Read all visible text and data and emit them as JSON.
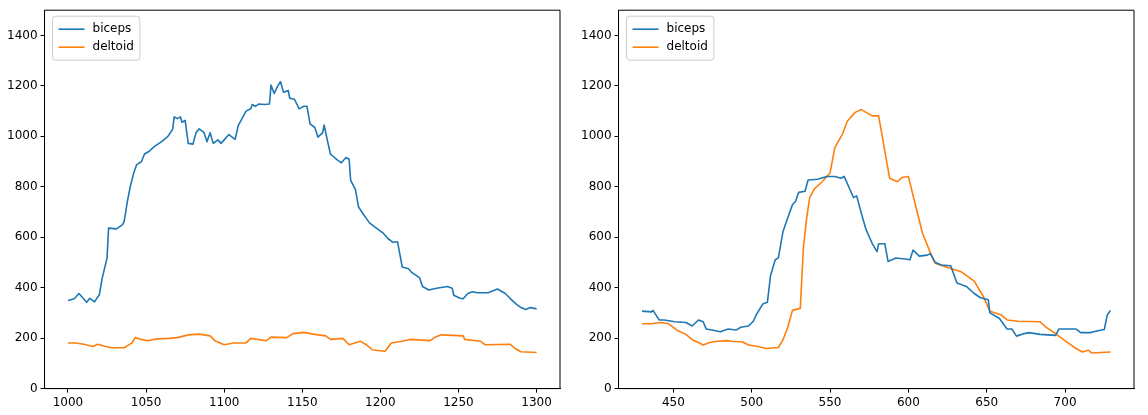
{
  "chart_data": [
    {
      "type": "line",
      "xlim": [
        985,
        1315
      ],
      "xticks": [
        1000,
        1050,
        1100,
        1150,
        1200,
        1250,
        1300
      ],
      "ylim": [
        0,
        1500
      ],
      "yticks": [
        0,
        200,
        400,
        600,
        800,
        1000,
        1200,
        1400
      ],
      "legend": "top left",
      "grid": false,
      "series": [
        {
          "name": "biceps",
          "color": "#1f77b4",
          "x": [
            1000,
            1004,
            1007,
            1009,
            1012,
            1014,
            1017,
            1019,
            1020,
            1022,
            1025,
            1026,
            1031,
            1035,
            1036,
            1038,
            1040,
            1042,
            1044,
            1047,
            1049,
            1052,
            1055,
            1060,
            1064,
            1067,
            1068,
            1070,
            1072,
            1073,
            1075,
            1077,
            1080,
            1082,
            1084,
            1087,
            1089,
            1091,
            1093,
            1096,
            1098,
            1100,
            1103,
            1106,
            1107,
            1109,
            1114,
            1117,
            1118,
            1120,
            1122,
            1126,
            1129,
            1130,
            1132,
            1134,
            1136,
            1138,
            1141,
            1142,
            1145,
            1148,
            1151,
            1153,
            1155,
            1158,
            1160,
            1163,
            1164,
            1166,
            1168,
            1172,
            1175,
            1178,
            1180,
            1181,
            1184,
            1186,
            1189,
            1193,
            1197,
            1202,
            1205,
            1208,
            1211,
            1214,
            1218,
            1220,
            1225,
            1227,
            1231,
            1236,
            1243,
            1246,
            1247,
            1251,
            1253,
            1256,
            1259,
            1262,
            1269,
            1275,
            1280,
            1283,
            1287,
            1290,
            1293,
            1296,
            1300
          ],
          "values": [
            349,
            356,
            377,
            363,
            342,
            358,
            344,
            363,
            370,
            440,
            517,
            636,
            633,
            650,
            664,
            741,
            804,
            853,
            888,
            899,
            930,
            941,
            958,
            979,
            1000,
            1028,
            1077,
            1070,
            1077,
            1056,
            1063,
            972,
            969,
            1014,
            1030,
            1016,
            979,
            1014,
            972,
            986,
            972,
            986,
            1007,
            993,
            988,
            1042,
            1100,
            1109,
            1126,
            1119,
            1128,
            1126,
            1128,
            1203,
            1170,
            1196,
            1217,
            1175,
            1182,
            1151,
            1147,
            1109,
            1119,
            1119,
            1049,
            1035,
            997,
            1014,
            1045,
            986,
            930,
            909,
            895,
            916,
            909,
            825,
            790,
            720,
            692,
            657,
            638,
            615,
            594,
            580,
            582,
            482,
            475,
            461,
            440,
            405,
            391,
            398,
            405,
            398,
            370,
            358,
            356,
            377,
            384,
            380,
            380,
            395,
            377,
            358,
            335,
            321,
            314,
            321,
            316
          ]
        },
        {
          "name": "deltoid",
          "color": "#ff7f0e",
          "x": [
            1000,
            1005,
            1010,
            1016,
            1019,
            1024,
            1028,
            1036,
            1041,
            1043,
            1047,
            1051,
            1057,
            1065,
            1070,
            1077,
            1084,
            1091,
            1094,
            1100,
            1106,
            1114,
            1117,
            1127,
            1130,
            1140,
            1144,
            1151,
            1157,
            1165,
            1168,
            1176,
            1180,
            1187,
            1191,
            1195,
            1203,
            1207,
            1214,
            1219,
            1232,
            1235,
            1239,
            1253,
            1254,
            1264,
            1267,
            1283,
            1286,
            1290,
            1300
          ],
          "values": [
            181,
            181,
            176,
            167,
            176,
            167,
            162,
            162,
            181,
            202,
            195,
            190,
            197,
            199,
            202,
            213,
            216,
            209,
            190,
            174,
            181,
            181,
            199,
            190,
            204,
            202,
            218,
            223,
            216,
            209,
            195,
            199,
            174,
            188,
            174,
            153,
            148,
            181,
            188,
            195,
            190,
            204,
            213,
            209,
            195,
            188,
            174,
            176,
            160,
            146,
            143
          ]
        }
      ]
    },
    {
      "type": "line",
      "xlim": [
        415,
        744
      ],
      "xticks": [
        450,
        500,
        550,
        600,
        650,
        700
      ],
      "ylim": [
        0,
        1500
      ],
      "yticks": [
        0,
        200,
        400,
        600,
        800,
        1000,
        1200,
        1400
      ],
      "legend": "top left",
      "grid": false,
      "series": [
        {
          "name": "biceps",
          "color": "#1f77b4",
          "x": [
            430,
            436,
            437,
            441,
            444,
            451,
            458,
            462,
            466,
            469,
            471,
            477,
            480,
            485,
            490,
            493,
            498,
            501,
            503,
            507,
            510,
            512,
            515,
            517,
            520,
            522,
            526,
            528,
            530,
            534,
            536,
            542,
            548,
            553,
            557,
            559,
            562,
            565,
            567,
            570,
            573,
            577,
            580,
            581,
            585,
            587,
            592,
            598,
            601,
            603,
            607,
            612,
            614,
            617,
            621,
            627,
            631,
            637,
            642,
            646,
            651,
            652,
            658,
            663,
            666,
            669,
            674,
            677,
            684,
            694,
            696,
            707,
            710,
            716,
            721,
            725,
            727,
            729
          ],
          "values": [
            307,
            304,
            310,
            272,
            272,
            265,
            262,
            248,
            272,
            265,
            236,
            229,
            225,
            236,
            232,
            243,
            248,
            267,
            293,
            335,
            342,
            447,
            511,
            518,
            623,
            659,
            729,
            743,
            778,
            782,
            827,
            830,
            841,
            841,
            834,
            841,
            799,
            757,
            764,
            694,
            630,
            574,
            543,
            574,
            574,
            504,
            518,
            514,
            511,
            549,
            525,
            529,
            535,
            501,
            490,
            487,
            419,
            405,
            377,
            360,
            352,
            300,
            279,
            236,
            236,
            208,
            218,
            222,
            215,
            211,
            236,
            236,
            222,
            222,
            229,
            234,
            293,
            310
          ]
        },
        {
          "name": "deltoid",
          "color": "#ff7f0e",
          "x": [
            430,
            436,
            442,
            447,
            450,
            453,
            458,
            462,
            466,
            469,
            473,
            477,
            484,
            488,
            494,
            498,
            505,
            509,
            517,
            520,
            523,
            526,
            531,
            533,
            535,
            537,
            540,
            545,
            550,
            553,
            558,
            561,
            566,
            570,
            573,
            577,
            581,
            585,
            588,
            593,
            596,
            600,
            605,
            609,
            614,
            617,
            626,
            634,
            642,
            648,
            652,
            659,
            663,
            670,
            684,
            688,
            693,
            699,
            707,
            711,
            715,
            717,
            729
          ],
          "values": [
            257,
            257,
            262,
            257,
            243,
            229,
            215,
            194,
            183,
            173,
            183,
            187,
            190,
            187,
            186,
            173,
            166,
            159,
            163,
            194,
            243,
            310,
            318,
            560,
            673,
            757,
            792,
            820,
            855,
            954,
            1010,
            1060,
            1095,
            1106,
            1095,
            1081,
            1081,
            940,
            834,
            820,
            837,
            841,
            715,
            616,
            539,
            497,
            478,
            462,
            426,
            363,
            307,
            293,
            272,
            267,
            265,
            243,
            222,
            194,
            159,
            145,
            152,
            141,
            145
          ]
        }
      ]
    }
  ]
}
